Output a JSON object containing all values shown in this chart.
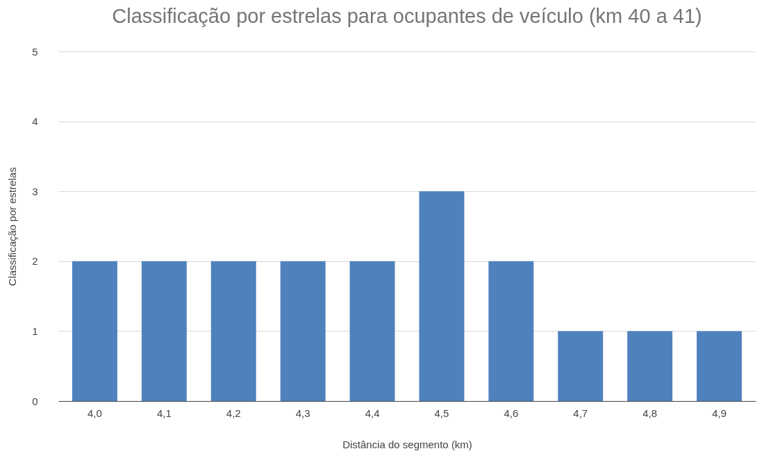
{
  "chart_data": {
    "type": "bar",
    "title": "Classificação por estrelas para ocupantes de veículo (km 40 a 41)",
    "xlabel": "Distância do segmento (km)",
    "ylabel": "Classificação por estrelas",
    "categories": [
      "4,0",
      "4,1",
      "4,2",
      "4,3",
      "4,4",
      "4,5",
      "4,6",
      "4,7",
      "4,8",
      "4,9"
    ],
    "values": [
      2,
      2,
      2,
      2,
      2,
      3,
      2,
      1,
      1,
      1
    ],
    "color": "#4f81bd",
    "ylim": [
      0,
      5
    ],
    "yticks": [
      0,
      1,
      2,
      3,
      4,
      5
    ],
    "grid": "y"
  }
}
